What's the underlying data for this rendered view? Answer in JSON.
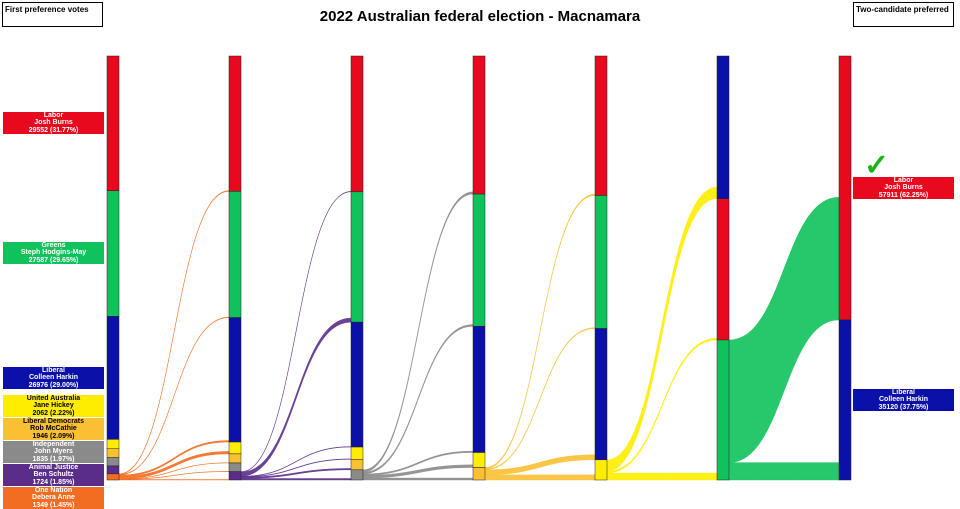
{
  "chart_data": {
    "type": "sankey",
    "title": "2022 Australian federal election - Macnamara",
    "left_header": "First preference votes",
    "right_header": "Two-candidate preferred",
    "parties": {
      "LAB": {
        "party": "Labor",
        "candidate": "Josh Burns",
        "color": "#e8091e"
      },
      "GRN": {
        "party": "Greens",
        "candidate": "Steph Hodgins-May",
        "color": "#10c25b"
      },
      "LIB": {
        "party": "Liberal",
        "candidate": "Colleen Harkin",
        "color": "#0a10a8"
      },
      "UAP": {
        "party": "United Australia",
        "candidate": "Jane Hickey",
        "color": "#ffed00"
      },
      "LDP": {
        "party": "Liberal Democrats",
        "candidate": "Rob McCathie",
        "color": "#f9c034"
      },
      "IND": {
        "party": "Independent",
        "candidate": "John Myers",
        "color": "#8a8a8a"
      },
      "AJP": {
        "party": "Animal Justice",
        "candidate": "Ben Schultz",
        "color": "#5b2d8b"
      },
      "ON": {
        "party": "One Nation",
        "candidate": "Debera Anne",
        "color": "#f26c21"
      }
    },
    "first_preferences": [
      {
        "id": "LAB",
        "votes": "29552 (31.77%)"
      },
      {
        "id": "GRN",
        "votes": "27587 (29.65%)"
      },
      {
        "id": "LIB",
        "votes": "26976 (29.00%)"
      },
      {
        "id": "UAP",
        "votes": "2062 (2.22%)"
      },
      {
        "id": "LDP",
        "votes": "1946 (2.09%)"
      },
      {
        "id": "IND",
        "votes": "1835 (1.97%)"
      },
      {
        "id": "AJP",
        "votes": "1724 (1.85%)"
      },
      {
        "id": "ON",
        "votes": "1349 (1.45%)"
      }
    ],
    "two_candidate_preferred": [
      {
        "id": "LAB",
        "votes": "57911 (62.25%)",
        "winner": true
      },
      {
        "id": "LIB",
        "votes": "35120 (37.75%)"
      }
    ],
    "rounds": [
      [
        [
          "LAB",
          29552
        ],
        [
          "GRN",
          27587
        ],
        [
          "LIB",
          26976
        ],
        [
          "UAP",
          2062
        ],
        [
          "LDP",
          1946
        ],
        [
          "IND",
          1835
        ],
        [
          "AJP",
          1724
        ],
        [
          "ON",
          1349
        ]
      ],
      [
        [
          "LAB",
          29700
        ],
        [
          "GRN",
          27700
        ],
        [
          "LIB",
          27300
        ],
        [
          "UAP",
          2600
        ],
        [
          "LDP",
          2000
        ],
        [
          "IND",
          1900
        ],
        [
          "AJP",
          1831
        ]
      ],
      [
        [
          "LAB",
          29800
        ],
        [
          "GRN",
          28600
        ],
        [
          "LIB",
          27400
        ],
        [
          "UAP",
          2700
        ],
        [
          "LDP",
          2300
        ],
        [
          "IND",
          2231
        ]
      ],
      [
        [
          "LAB",
          30300
        ],
        [
          "GRN",
          29000
        ],
        [
          "LIB",
          27700
        ],
        [
          "UAP",
          3300
        ],
        [
          "LDP",
          2731
        ]
      ],
      [
        [
          "LAB",
          30600
        ],
        [
          "GRN",
          29200
        ],
        [
          "LIB",
          28800
        ],
        [
          "UAP",
          4431
        ]
      ],
      [
        [
          "LIB",
          31300
        ],
        [
          "LAB",
          31000
        ],
        [
          "GRN",
          30731
        ]
      ],
      [
        [
          "LAB",
          57911
        ],
        [
          "LIB",
          35120
        ]
      ]
    ]
  }
}
